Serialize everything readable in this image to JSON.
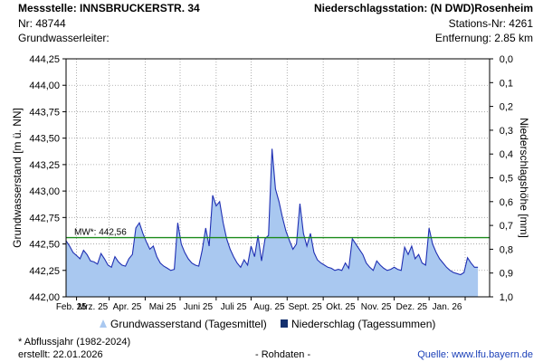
{
  "header": {
    "station_label": "Messstelle: INNSBRUCKERSTR. 34",
    "station_nr": "Nr: 48744",
    "aquifer": "Grundwasserleiter:",
    "precip_station": "Niederschlagsstation: (N DWD)Rosenheim",
    "precip_nr": "Stations-Nr: 4261",
    "distance": "Entfernung: 2.85 km"
  },
  "footer": {
    "note": "* Abflussjahr (1982-2024)",
    "created": "erstellt:  22.01.2026",
    "raw": "- Rohdaten -",
    "source": "Quelle: www.lfu.bayern.de"
  },
  "colors": {
    "area_fill": "#a9c8f0",
    "line": "#1f2fb3",
    "mean_line": "#1a8a1a",
    "precip": "#14306e",
    "grid": "#9e9e9e"
  },
  "chart_data": {
    "type": "area",
    "ylabel": "Grundwasserstand [m ü. NN]",
    "y2label": "Niederschlagshöhe [mm]",
    "ylim": [
      442.0,
      444.25
    ],
    "y2lim": [
      0.0,
      1.0
    ],
    "y_ticks": [
      "444,25",
      "444,00",
      "443,75",
      "443,50",
      "443,25",
      "443,00",
      "442,75",
      "442,50",
      "442,25",
      "442,00"
    ],
    "y_tick_values": [
      444.25,
      444.0,
      443.75,
      443.5,
      443.25,
      443.0,
      442.75,
      442.5,
      442.25,
      442.0
    ],
    "y2_ticks": [
      "0,0",
      "0,1",
      "0,2",
      "0,3",
      "0,4",
      "0,5",
      "0,6",
      "0,7",
      "0,8",
      "0,9",
      "1,0"
    ],
    "y2_tick_values": [
      0.0,
      0.1,
      0.2,
      0.3,
      0.4,
      0.5,
      0.6,
      0.7,
      0.8,
      0.9,
      1.0
    ],
    "x_ticks": [
      "Feb. 25",
      "Mrz. 25",
      "Apr. 25",
      "Mai 25",
      "Juni 25",
      "Juli 25",
      "Aug. 25",
      "Sept. 25",
      "Okt. 25",
      "Nov. 25",
      "Dez. 25",
      "Jan. 26"
    ],
    "xlim": [
      "2025-01-23",
      "2026-01-22"
    ],
    "grid": true,
    "mean_value": 442.56,
    "mean_label": "MW*: 442,56",
    "legend": [
      {
        "label": "Grundwasserstand (Tagesmittel)"
      },
      {
        "label": "Niederschlag (Tagessummen)"
      }
    ],
    "series": [
      {
        "name": "Grundwasserstand (Tagesmittel)",
        "points": [
          [
            "2025-01-23",
            442.53
          ],
          [
            "2025-01-26",
            442.48
          ],
          [
            "2025-01-29",
            442.42
          ],
          [
            "2025-02-01",
            442.39
          ],
          [
            "2025-02-04",
            442.36
          ],
          [
            "2025-02-07",
            442.44
          ],
          [
            "2025-02-10",
            442.4
          ],
          [
            "2025-02-13",
            442.34
          ],
          [
            "2025-02-16",
            442.33
          ],
          [
            "2025-02-19",
            442.31
          ],
          [
            "2025-02-22",
            442.41
          ],
          [
            "2025-02-25",
            442.36
          ],
          [
            "2025-02-28",
            442.3
          ],
          [
            "2025-03-03",
            442.28
          ],
          [
            "2025-03-06",
            442.38
          ],
          [
            "2025-03-09",
            442.33
          ],
          [
            "2025-03-12",
            442.3
          ],
          [
            "2025-03-15",
            442.29
          ],
          [
            "2025-03-18",
            442.36
          ],
          [
            "2025-03-21",
            442.4
          ],
          [
            "2025-03-24",
            442.65
          ],
          [
            "2025-03-27",
            442.7
          ],
          [
            "2025-03-30",
            442.6
          ],
          [
            "2025-04-02",
            442.52
          ],
          [
            "2025-04-05",
            442.45
          ],
          [
            "2025-04-08",
            442.48
          ],
          [
            "2025-04-11",
            442.38
          ],
          [
            "2025-04-14",
            442.32
          ],
          [
            "2025-04-17",
            442.29
          ],
          [
            "2025-04-20",
            442.27
          ],
          [
            "2025-04-23",
            442.25
          ],
          [
            "2025-04-26",
            442.26
          ],
          [
            "2025-04-29",
            442.7
          ],
          [
            "2025-05-02",
            442.5
          ],
          [
            "2025-05-05",
            442.42
          ],
          [
            "2025-05-08",
            442.36
          ],
          [
            "2025-05-11",
            442.32
          ],
          [
            "2025-05-14",
            442.3
          ],
          [
            "2025-05-17",
            442.29
          ],
          [
            "2025-05-20",
            442.44
          ],
          [
            "2025-05-23",
            442.65
          ],
          [
            "2025-05-26",
            442.48
          ],
          [
            "2025-05-29",
            442.96
          ],
          [
            "2025-06-01",
            442.86
          ],
          [
            "2025-06-04",
            442.9
          ],
          [
            "2025-06-07",
            442.7
          ],
          [
            "2025-06-10",
            442.55
          ],
          [
            "2025-06-13",
            442.45
          ],
          [
            "2025-06-16",
            442.38
          ],
          [
            "2025-06-19",
            442.32
          ],
          [
            "2025-06-22",
            442.28
          ],
          [
            "2025-06-25",
            442.35
          ],
          [
            "2025-06-28",
            442.3
          ],
          [
            "2025-07-01",
            442.48
          ],
          [
            "2025-07-04",
            442.38
          ],
          [
            "2025-07-07",
            442.58
          ],
          [
            "2025-07-10",
            442.34
          ],
          [
            "2025-07-13",
            442.55
          ],
          [
            "2025-07-16",
            442.58
          ],
          [
            "2025-07-19",
            443.4
          ],
          [
            "2025-07-22",
            443.02
          ],
          [
            "2025-07-25",
            442.9
          ],
          [
            "2025-07-28",
            442.75
          ],
          [
            "2025-07-31",
            442.62
          ],
          [
            "2025-08-03",
            442.53
          ],
          [
            "2025-08-06",
            442.45
          ],
          [
            "2025-08-09",
            442.5
          ],
          [
            "2025-08-12",
            442.88
          ],
          [
            "2025-08-15",
            442.6
          ],
          [
            "2025-08-18",
            442.48
          ],
          [
            "2025-08-21",
            442.6
          ],
          [
            "2025-08-24",
            442.42
          ],
          [
            "2025-08-27",
            442.35
          ],
          [
            "2025-08-30",
            442.32
          ],
          [
            "2025-09-02",
            442.3
          ],
          [
            "2025-09-05",
            442.28
          ],
          [
            "2025-09-08",
            442.27
          ],
          [
            "2025-09-11",
            442.25
          ],
          [
            "2025-09-14",
            442.26
          ],
          [
            "2025-09-17",
            442.25
          ],
          [
            "2025-09-20",
            442.32
          ],
          [
            "2025-09-23",
            442.27
          ],
          [
            "2025-09-26",
            442.55
          ],
          [
            "2025-09-29",
            442.5
          ],
          [
            "2025-10-02",
            442.45
          ],
          [
            "2025-10-05",
            442.4
          ],
          [
            "2025-10-08",
            442.32
          ],
          [
            "2025-10-11",
            442.28
          ],
          [
            "2025-10-14",
            442.25
          ],
          [
            "2025-10-17",
            442.34
          ],
          [
            "2025-10-20",
            442.3
          ],
          [
            "2025-10-23",
            442.27
          ],
          [
            "2025-10-26",
            442.25
          ],
          [
            "2025-10-29",
            442.26
          ],
          [
            "2025-11-01",
            442.28
          ],
          [
            "2025-11-04",
            442.26
          ],
          [
            "2025-11-07",
            442.25
          ],
          [
            "2025-11-10",
            442.47
          ],
          [
            "2025-11-13",
            442.4
          ],
          [
            "2025-11-16",
            442.48
          ],
          [
            "2025-11-19",
            442.36
          ],
          [
            "2025-11-22",
            442.4
          ],
          [
            "2025-11-25",
            442.32
          ],
          [
            "2025-11-28",
            442.3
          ],
          [
            "2025-12-01",
            442.65
          ],
          [
            "2025-12-04",
            442.5
          ],
          [
            "2025-12-07",
            442.42
          ],
          [
            "2025-12-10",
            442.36
          ],
          [
            "2025-12-13",
            442.32
          ],
          [
            "2025-12-16",
            442.28
          ],
          [
            "2025-12-19",
            442.25
          ],
          [
            "2025-12-22",
            442.23
          ],
          [
            "2025-12-25",
            442.22
          ],
          [
            "2025-12-28",
            442.21
          ],
          [
            "2025-12-31",
            442.23
          ],
          [
            "2026-01-03",
            442.37
          ],
          [
            "2026-01-06",
            442.32
          ],
          [
            "2026-01-09",
            442.28
          ],
          [
            "2026-01-12",
            442.28
          ]
        ]
      },
      {
        "name": "Niederschlag (Tagessummen)",
        "points": []
      }
    ]
  }
}
